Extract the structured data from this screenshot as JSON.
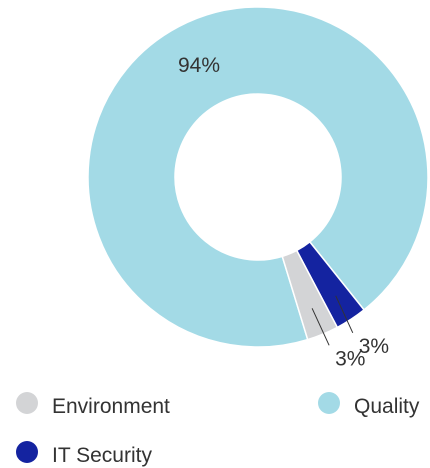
{
  "chart_data": {
    "type": "pie",
    "variant": "donut",
    "slices": [
      {
        "name": "Quality",
        "value": 94,
        "label": "94%",
        "color": "#a3dae6"
      },
      {
        "name": "IT Security",
        "value": 3,
        "label": "3%",
        "color": "#1423a0"
      },
      {
        "name": "Environment",
        "value": 3,
        "label": "3%",
        "color": "#d3d4d6"
      }
    ],
    "legend": [
      {
        "name": "Environment",
        "color": "#d3d4d6"
      },
      {
        "name": "Quality",
        "color": "#a3dae6"
      },
      {
        "name": "IT Security",
        "color": "#1423a0"
      }
    ],
    "legend_position": "bottom"
  }
}
